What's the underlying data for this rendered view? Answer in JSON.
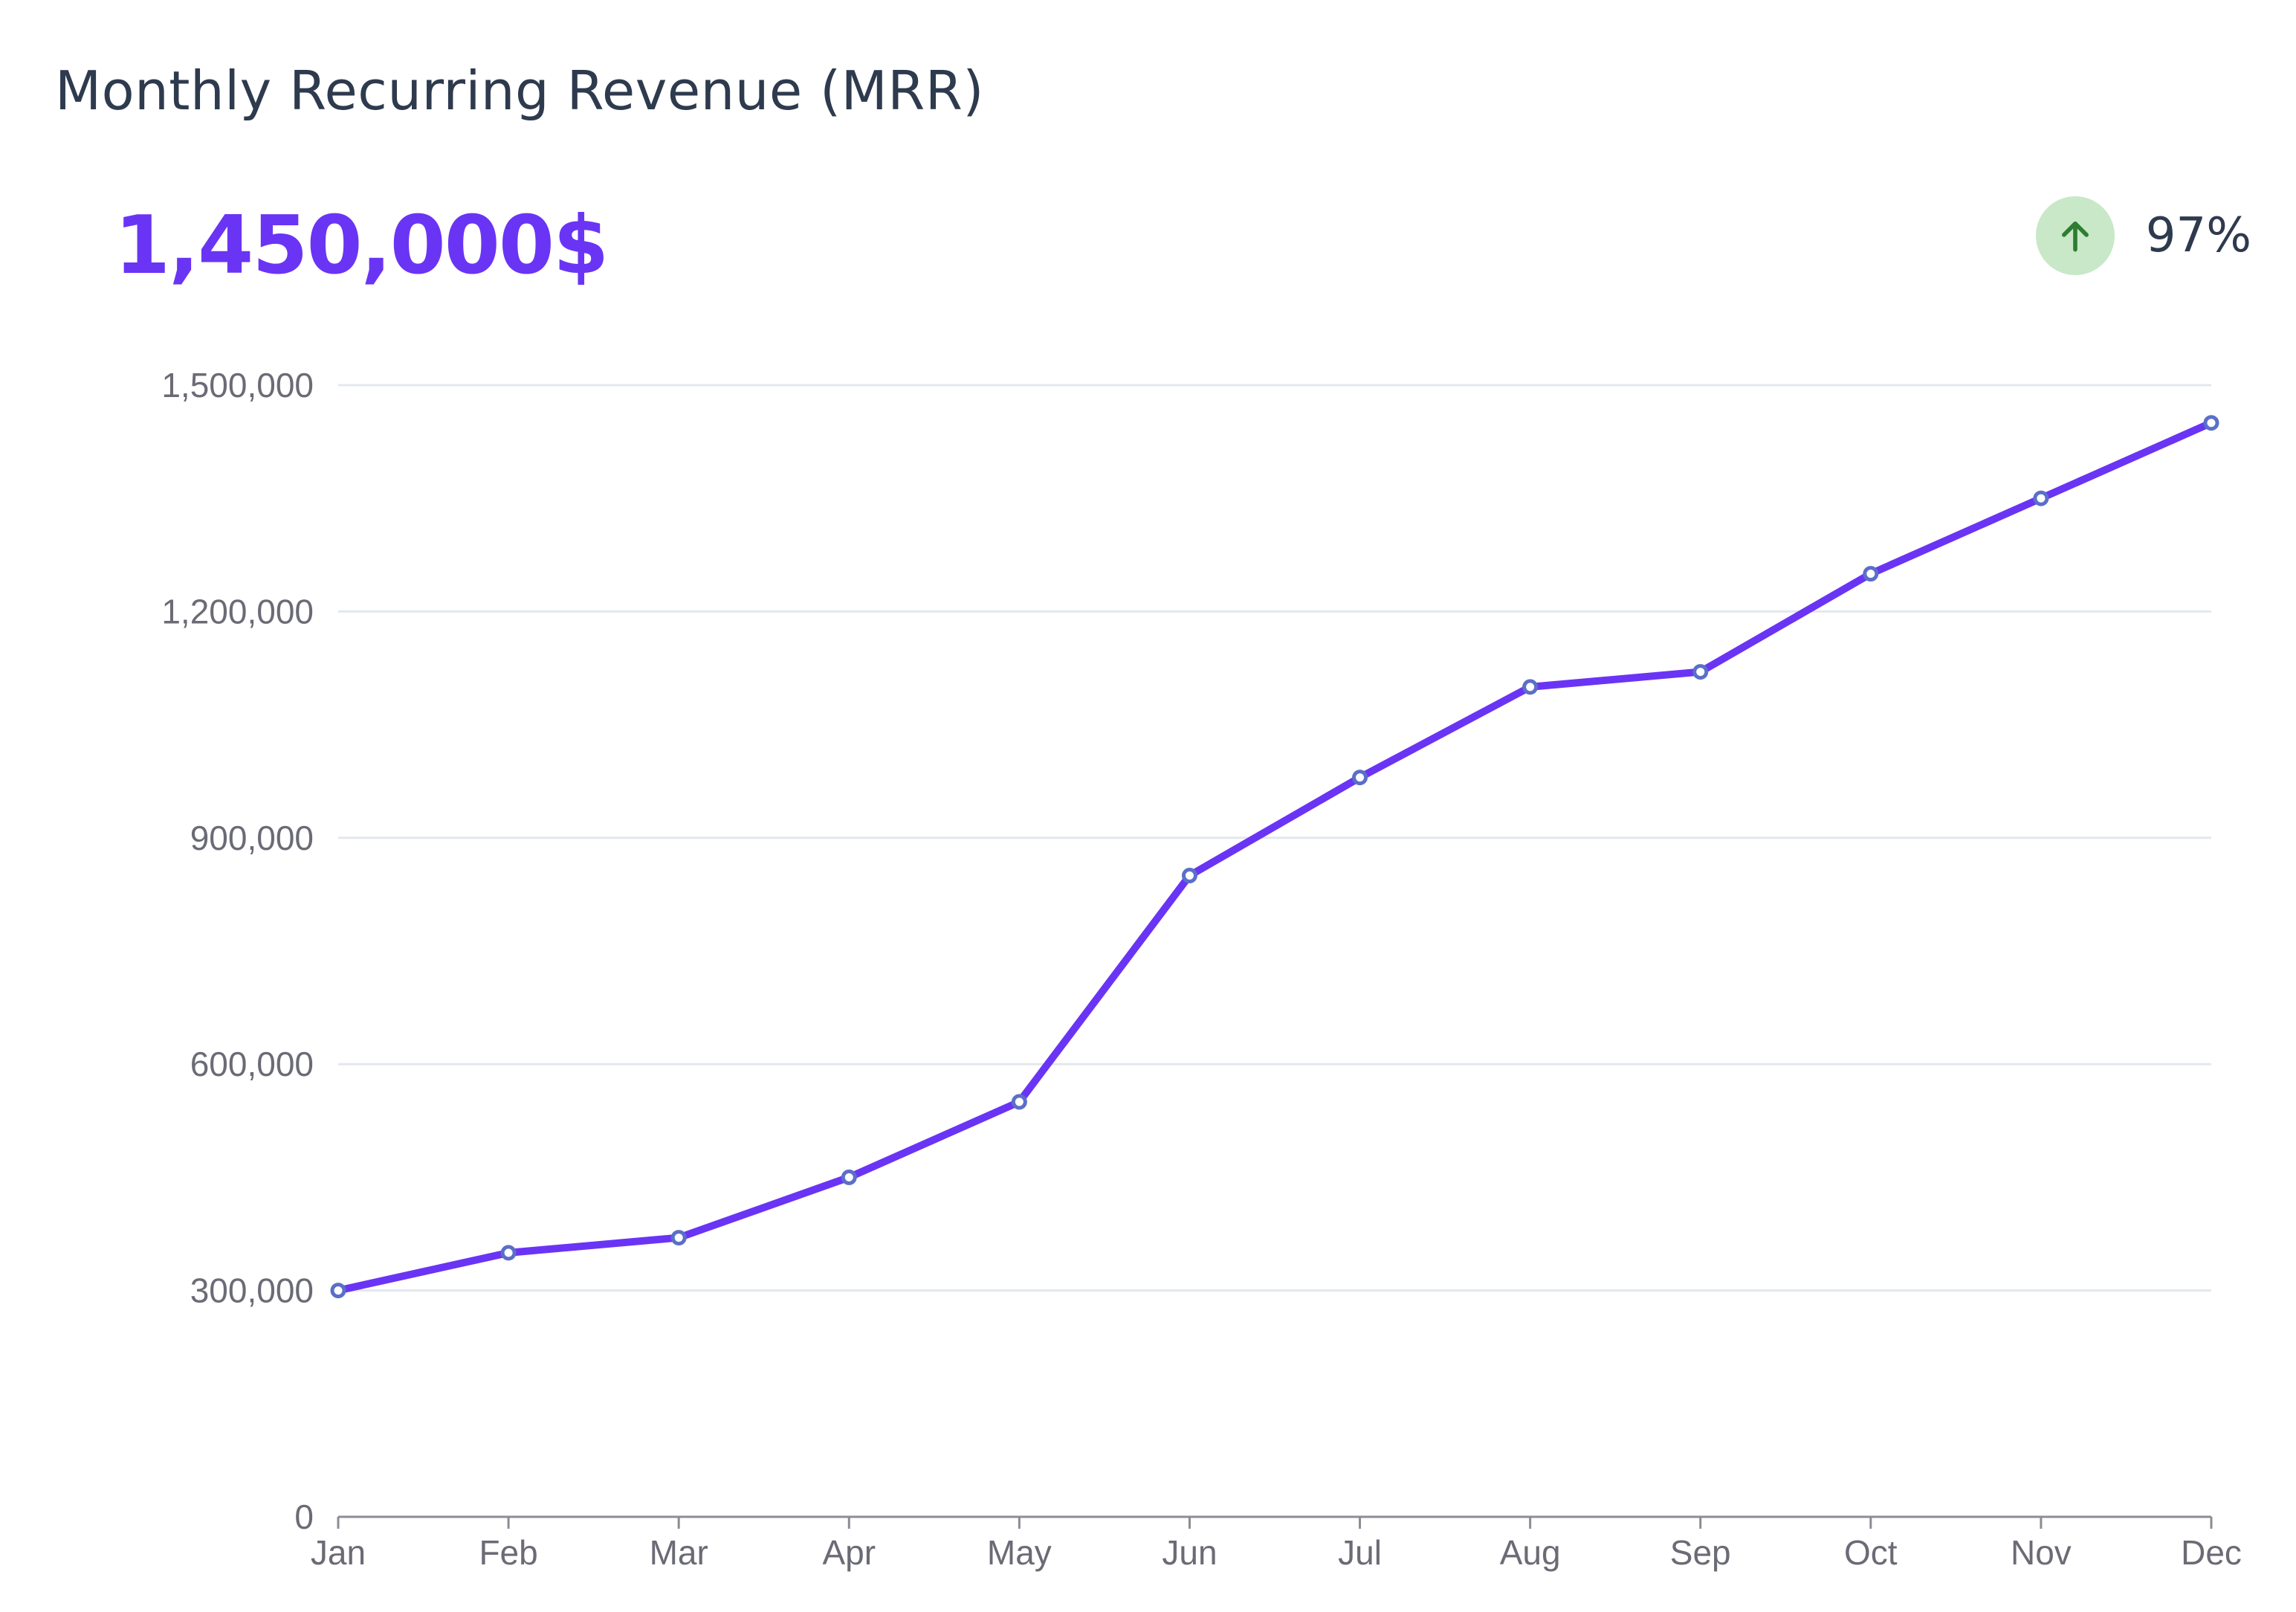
{
  "header": {
    "title": "Monthly Recurring Revenue (MRR)",
    "value": "1,450,000$",
    "trend_percent": "97%",
    "trend_direction_icon": "arrow-up-icon"
  },
  "colors": {
    "line": "#6a34f5",
    "point_stroke": "#5b6fc9",
    "kpi": "#6a34f5",
    "trend_bg": "#c8e8c8",
    "trend_arrow": "#2e7d32",
    "grid": "#e3e8ee",
    "axis": "#8c8c96",
    "tick_text": "#6b6b76"
  },
  "chart_data": {
    "type": "line",
    "categories": [
      "Jan",
      "Feb",
      "Mar",
      "Apr",
      "May",
      "Jun",
      "Jul",
      "Aug",
      "Sep",
      "Oct",
      "Nov",
      "Dec"
    ],
    "series": [
      {
        "values": [
          300000,
          350000,
          370000,
          450000,
          550000,
          850000,
          980000,
          1100000,
          1120000,
          1250000,
          1350000,
          1450000
        ]
      }
    ],
    "yticks": [
      0,
      300000,
      600000,
      900000,
      1200000,
      1500000
    ],
    "ytick_labels": [
      "0",
      "300,000",
      "600,000",
      "900,000",
      "1,200,000",
      "1,500,000"
    ],
    "ylim": [
      0,
      1500000
    ],
    "grid": true,
    "legend": "none"
  }
}
